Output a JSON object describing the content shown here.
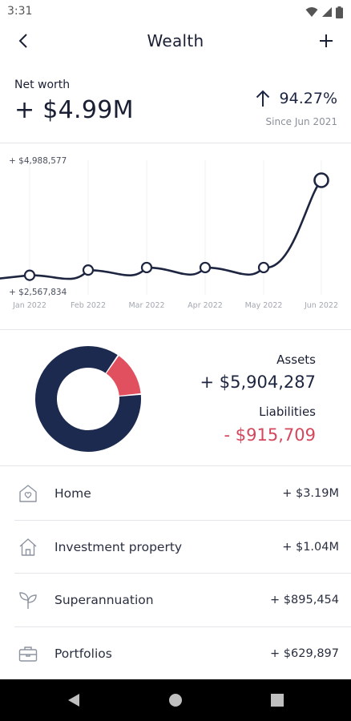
{
  "status_bar": {
    "time": "3:31"
  },
  "header": {
    "title": "Wealth"
  },
  "net_worth": {
    "label": "Net worth",
    "value": "+ $4.99M",
    "change": "94.27%",
    "since": "Since Jun 2021"
  },
  "chart_data": {
    "type": "line",
    "title": "",
    "xlabel": "",
    "ylabel": "",
    "y_max_label": "+ $4,988,577",
    "y_min_label": "+ $2,567,834",
    "x": [
      "Jan 2022",
      "Feb 2022",
      "Mar 2022",
      "Apr 2022",
      "May 2022",
      "Jun 2022"
    ],
    "values": [
      2780000,
      2900000,
      2960000,
      2960000,
      2960000,
      4988577
    ],
    "ylim": [
      2567834,
      4988577
    ],
    "grid": "vertical",
    "colors": {
      "line": "#1d2540",
      "grid": "#eef0f3"
    }
  },
  "breakdown": {
    "assets_label": "Assets",
    "assets_value": "+ $5,904,287",
    "liabilities_label": "Liabilities",
    "liabilities_value": "-  $915,709",
    "donut": {
      "assets": 5904287,
      "liabilities": 915709
    },
    "colors": {
      "assets": "#1d2a4f",
      "liabilities": "#e0505f"
    }
  },
  "categories": [
    {
      "icon": "home-heart-icon",
      "label": "Home",
      "value": "+ $3.19M"
    },
    {
      "icon": "house-icon",
      "label": "Investment property",
      "value": "+ $1.04M"
    },
    {
      "icon": "sprout-icon",
      "label": "Superannuation",
      "value": "+ $895,454"
    },
    {
      "icon": "briefcase-icon",
      "label": "Portfolios",
      "value": "+ $629,897"
    }
  ]
}
